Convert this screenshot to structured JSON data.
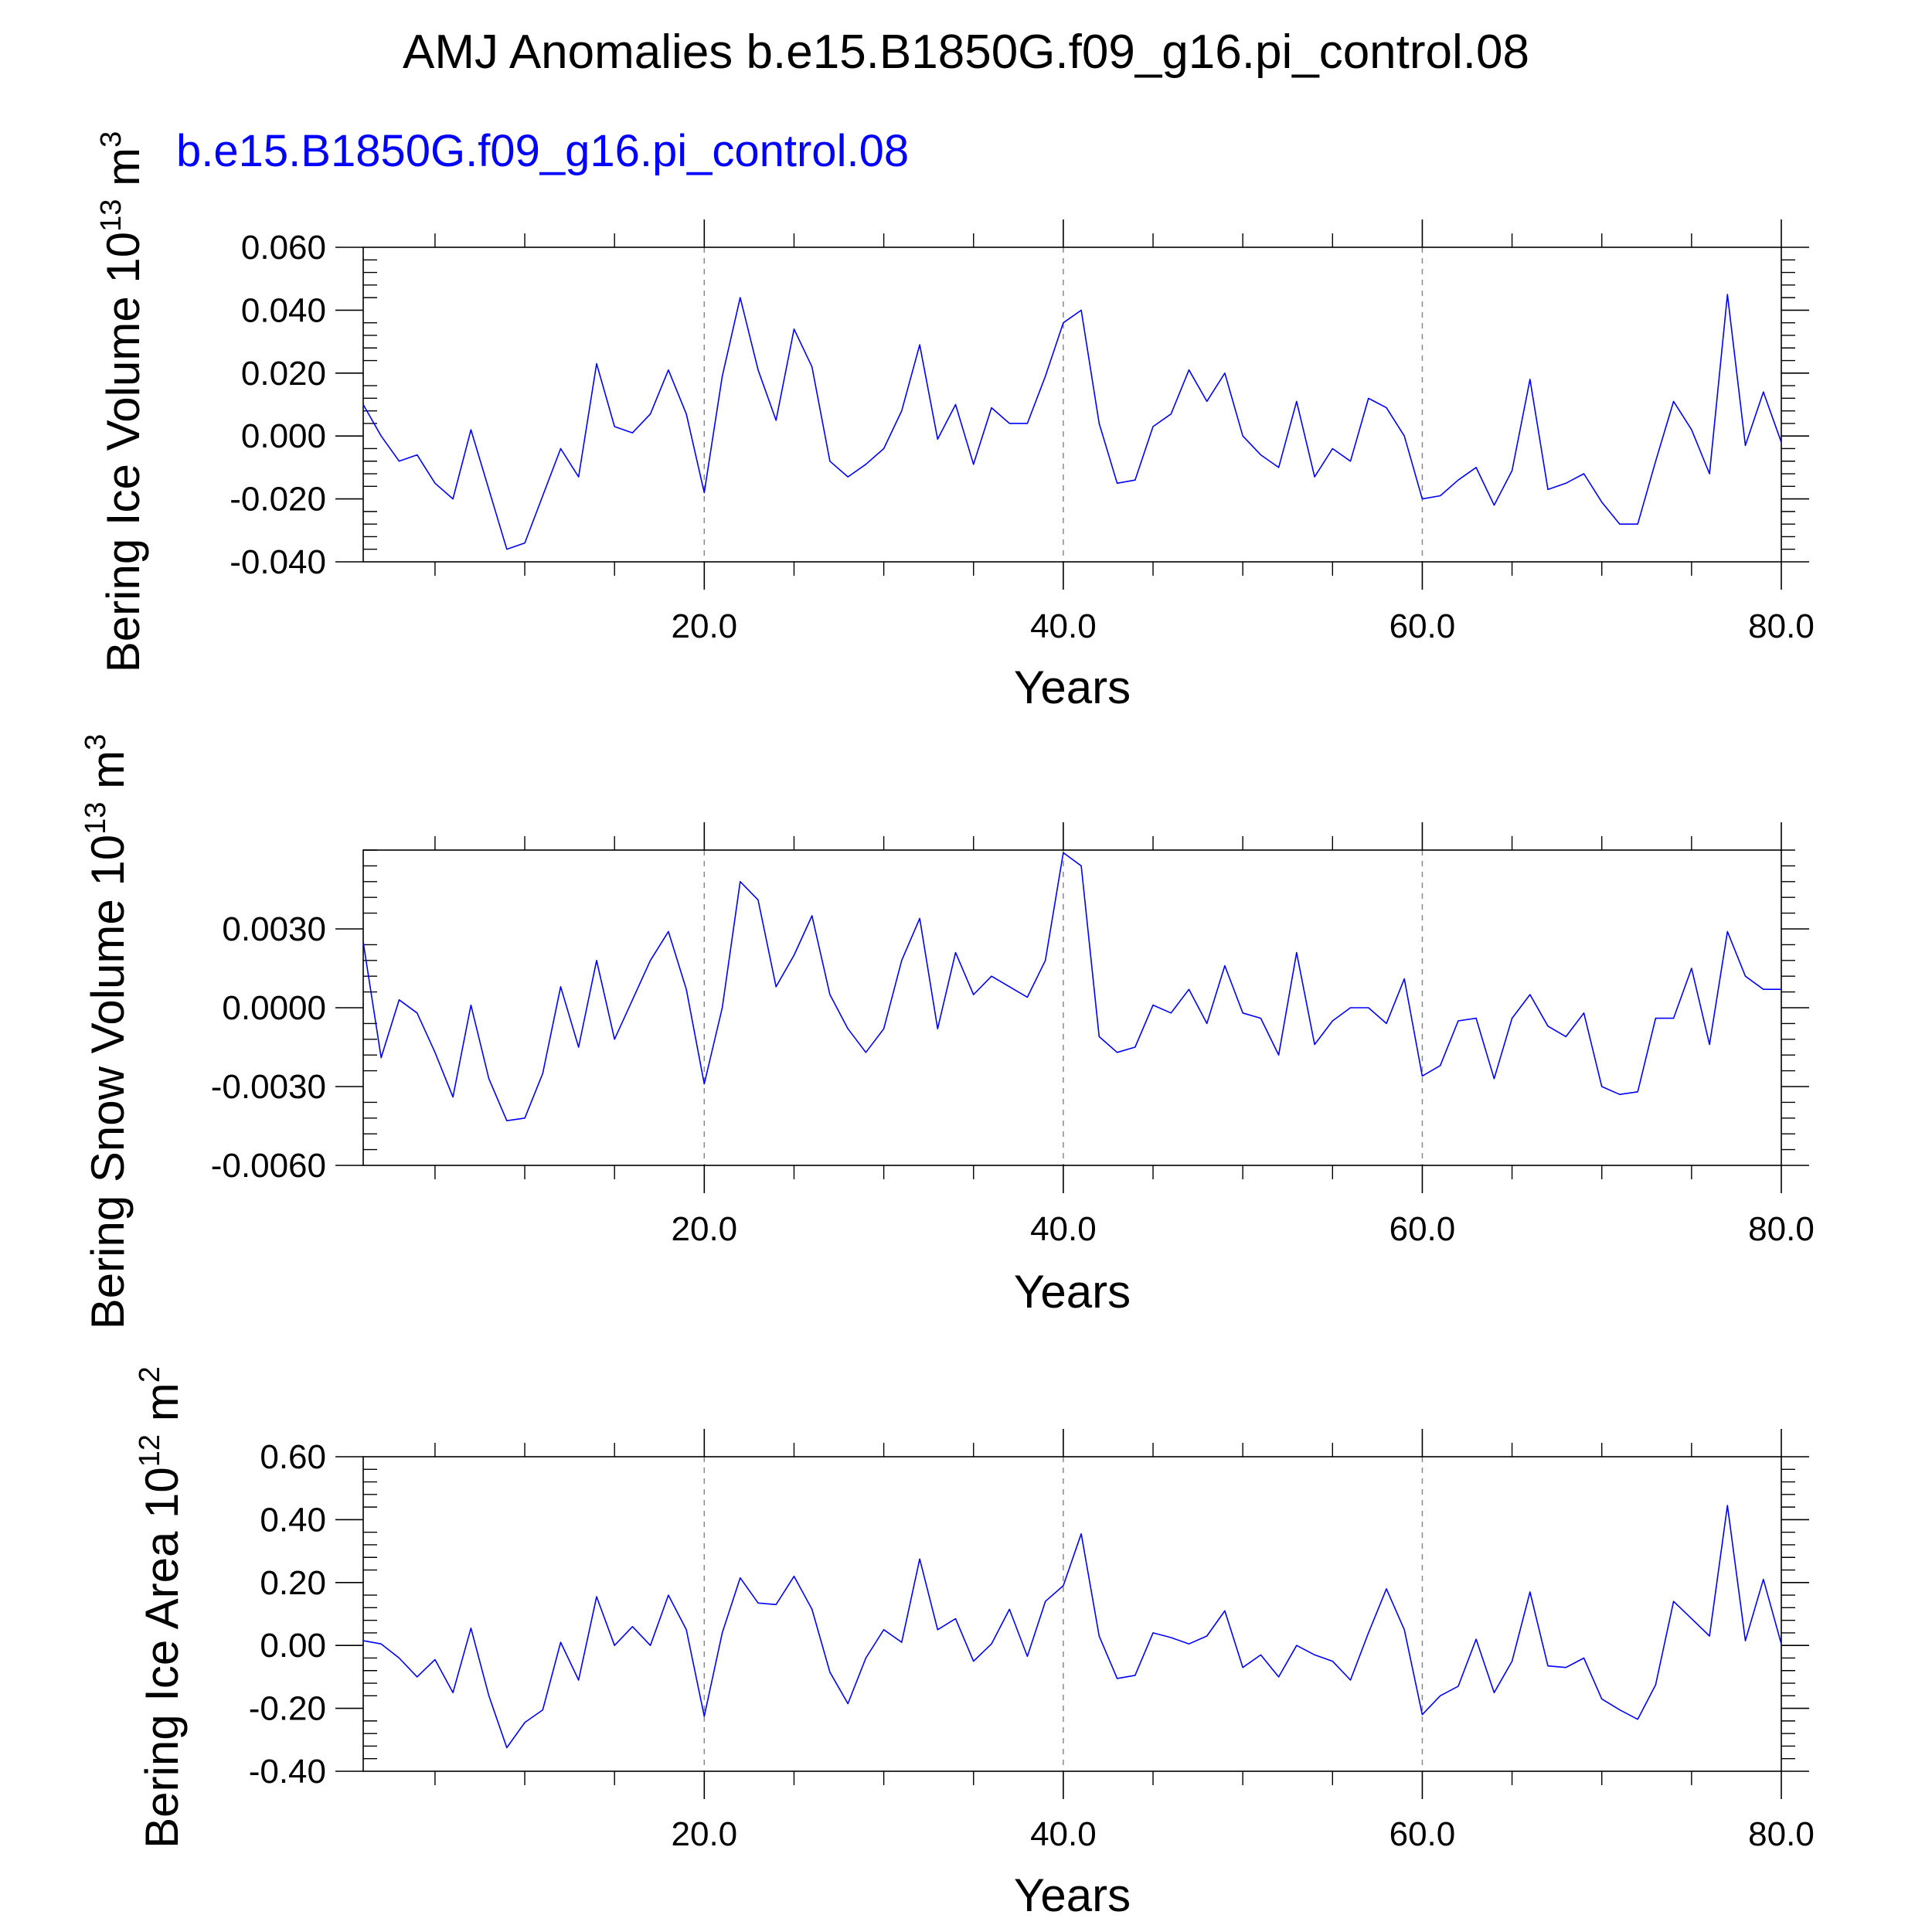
{
  "title": "AMJ Anomalies b.e15.B1850G.f09_g16.pi_control.08",
  "subtitle": "b.e15.B1850G.f09_g16.pi_control.08",
  "colors": {
    "series": "#0000ff",
    "text": "#000000",
    "subtitle": "#0000ff",
    "refline": "#888888"
  },
  "chart_data": [
    {
      "type": "line",
      "ylabel": "Bering Ice Volume",
      "units": {
        "exp": "13",
        "unit": "m",
        "unit_exp": "3"
      },
      "xlabel": "Years",
      "xlim": [
        1,
        80
      ],
      "ylim": [
        -0.04,
        0.06
      ],
      "yticks": [
        -0.04,
        -0.02,
        0.0,
        0.02,
        0.04,
        0.06
      ],
      "ytick_labels": [
        "-0.040",
        "-0.020",
        "0.000",
        "0.020",
        "0.040",
        "0.060"
      ],
      "xticks": [
        20,
        40,
        60,
        80
      ],
      "xtick_labels": [
        "20.0",
        "40.0",
        "60.0",
        "80.0"
      ],
      "ref_lines_x": [
        20,
        40,
        60
      ],
      "series": [
        {
          "x_start": 1,
          "values": [
            0.01,
            0.0,
            -0.008,
            -0.006,
            -0.015,
            -0.02,
            0.002,
            -0.017,
            -0.036,
            -0.034,
            -0.019,
            -0.004,
            -0.013,
            0.023,
            0.003,
            0.001,
            0.007,
            0.021,
            0.007,
            -0.018,
            0.019,
            0.044,
            0.021,
            0.005,
            0.034,
            0.022,
            -0.008,
            -0.013,
            -0.009,
            -0.004,
            0.008,
            0.029,
            -0.001,
            0.01,
            -0.009,
            0.009,
            0.004,
            0.004,
            0.019,
            0.036,
            0.04,
            0.004,
            -0.015,
            -0.014,
            0.003,
            0.007,
            0.021,
            0.011,
            0.02,
            0.0,
            -0.006,
            -0.01,
            0.011,
            -0.013,
            -0.004,
            -0.008,
            0.012,
            0.009,
            0.0,
            -0.02,
            -0.019,
            -0.014,
            -0.01,
            -0.022,
            -0.011,
            0.018,
            -0.017,
            -0.015,
            -0.012,
            -0.021,
            -0.028,
            -0.028,
            -0.008,
            0.011,
            0.002,
            -0.012,
            0.045,
            -0.003,
            0.014,
            -0.002
          ]
        }
      ]
    },
    {
      "type": "line",
      "ylabel": "Bering Snow Volume",
      "units": {
        "exp": "13",
        "unit": "m",
        "unit_exp": "3"
      },
      "xlabel": "Years",
      "xlim": [
        1,
        80
      ],
      "ylim": [
        -0.006,
        0.006
      ],
      "yticks": [
        -0.006,
        -0.003,
        0.0,
        0.003
      ],
      "ytick_labels": [
        "-0.0060",
        "-0.0030",
        "0.0000",
        "0.0030"
      ],
      "xticks": [
        20,
        40,
        60,
        80
      ],
      "xtick_labels": [
        "20.0",
        "40.0",
        "60.0",
        "80.0"
      ],
      "ref_lines_x": [
        20,
        40,
        60
      ],
      "series": [
        {
          "x_start": 1,
          "values": [
            0.0025,
            -0.0019,
            0.0003,
            -0.0002,
            -0.0017,
            -0.0034,
            0.0001,
            -0.0027,
            -0.0043,
            -0.0042,
            -0.0025,
            0.0008,
            -0.0015,
            0.0018,
            -0.0012,
            0.0003,
            0.0018,
            0.0029,
            0.0007,
            -0.0029,
            0.0,
            0.0048,
            0.0041,
            0.0008,
            0.002,
            0.0035,
            0.0005,
            -0.0008,
            -0.0017,
            -0.0008,
            0.0018,
            0.0034,
            -0.0008,
            0.0021,
            0.0005,
            0.0012,
            0.0008,
            0.0004,
            0.0018,
            0.0059,
            0.0054,
            -0.0011,
            -0.0017,
            -0.0015,
            0.0001,
            -0.0002,
            0.0007,
            -0.0006,
            0.0016,
            -0.0002,
            -0.0004,
            -0.0018,
            0.0021,
            -0.0014,
            -0.0005,
            0.0,
            0.0,
            -0.0006,
            0.0011,
            -0.0026,
            -0.0022,
            -0.0005,
            -0.0004,
            -0.0027,
            -0.0004,
            0.0005,
            -0.0007,
            -0.0011,
            -0.0002,
            -0.003,
            -0.0033,
            -0.0032,
            -0.0004,
            -0.0004,
            0.0015,
            -0.0014,
            0.0029,
            0.0012,
            0.0007,
            0.0007
          ]
        }
      ]
    },
    {
      "type": "line",
      "ylabel": "Bering Ice Area",
      "units": {
        "exp": "12",
        "unit": "m",
        "unit_exp": "2"
      },
      "xlabel": "Years",
      "xlim": [
        1,
        80
      ],
      "ylim": [
        -0.4,
        0.6
      ],
      "yticks": [
        -0.4,
        -0.2,
        0.0,
        0.2,
        0.4,
        0.6
      ],
      "ytick_labels": [
        "-0.40",
        "-0.20",
        "0.00",
        "0.20",
        "0.40",
        "0.60"
      ],
      "xticks": [
        20,
        40,
        60,
        80
      ],
      "xtick_labels": [
        "20.0",
        "40.0",
        "60.0",
        "80.0"
      ],
      "ref_lines_x": [
        20,
        40,
        60
      ],
      "series": [
        {
          "x_start": 1,
          "values": [
            0.015,
            0.005,
            -0.04,
            -0.1,
            -0.045,
            -0.15,
            0.055,
            -0.16,
            -0.325,
            -0.245,
            -0.205,
            0.01,
            -0.11,
            0.155,
            0.0,
            0.06,
            0.0,
            0.16,
            0.05,
            -0.225,
            0.04,
            0.215,
            0.135,
            0.13,
            0.22,
            0.115,
            -0.085,
            -0.185,
            -0.04,
            0.05,
            0.01,
            0.275,
            0.05,
            0.085,
            -0.05,
            0.005,
            0.115,
            -0.035,
            0.14,
            0.19,
            0.355,
            0.03,
            -0.105,
            -0.095,
            0.04,
            0.025,
            0.005,
            0.03,
            0.11,
            -0.07,
            -0.03,
            -0.1,
            0.0,
            -0.03,
            -0.05,
            -0.11,
            0.04,
            0.18,
            0.05,
            -0.22,
            -0.16,
            -0.13,
            0.02,
            -0.15,
            -0.05,
            0.17,
            -0.065,
            -0.07,
            -0.04,
            -0.17,
            -0.205,
            -0.235,
            -0.125,
            0.14,
            0.085,
            0.03,
            0.445,
            0.015,
            0.21,
            0.005
          ]
        }
      ]
    }
  ]
}
